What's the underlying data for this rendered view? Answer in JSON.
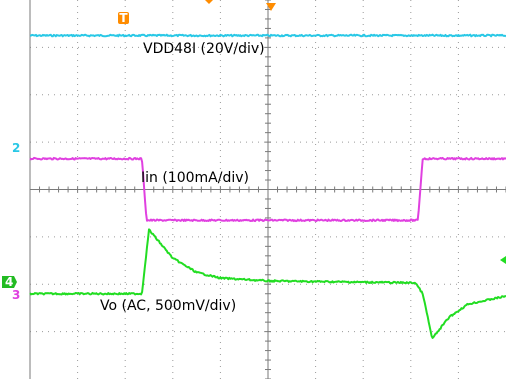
{
  "chart_data": {
    "type": "line",
    "grid": "dotted, 10 x 8 divisions",
    "time_axis": {
      "divisions": 10
    },
    "vertical_axis": {
      "divisions": 8
    },
    "channels": [
      {
        "id": "1",
        "label": "VDD48I (20V/div)",
        "color": "#29c8e6",
        "description": "flat DC level",
        "points": [
          [
            0,
            3.25
          ],
          [
            10,
            3.25
          ]
        ]
      },
      {
        "id": "2",
        "label": "Iin (100mA/div)",
        "color": "#e040e0",
        "description": "load step: high, low, high",
        "points": [
          [
            0,
            0.65
          ],
          [
            2.35,
            0.65
          ],
          [
            2.45,
            -0.65
          ],
          [
            8.15,
            -0.65
          ],
          [
            8.25,
            0.65
          ],
          [
            10,
            0.65
          ]
        ]
      },
      {
        "id": "4",
        "label": "Vo (AC,  500mV/div)",
        "color": "#22dd22",
        "description": "transient response with overshoot and undershoot",
        "points": [
          [
            0,
            -2.2
          ],
          [
            2.35,
            -2.2
          ],
          [
            2.5,
            -0.85
          ],
          [
            3.0,
            -1.45
          ],
          [
            3.5,
            -1.75
          ],
          [
            4.0,
            -1.87
          ],
          [
            5.0,
            -1.93
          ],
          [
            8.1,
            -1.97
          ],
          [
            8.25,
            -2.2
          ],
          [
            8.45,
            -3.15
          ],
          [
            8.8,
            -2.7
          ],
          [
            9.2,
            -2.42
          ],
          [
            10,
            -2.25
          ]
        ]
      }
    ],
    "markers": {
      "trigger": "T",
      "ch2": "2",
      "ch4": "4",
      "ch3": "3"
    }
  }
}
